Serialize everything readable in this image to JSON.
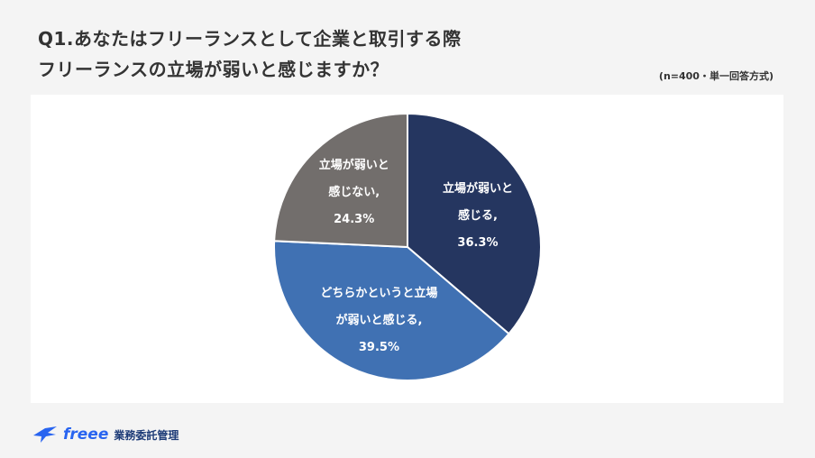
{
  "title": {
    "line1": "Q1.あなたはフリーランスとして企業と取引する際",
    "line2": "フリーランスの立場が弱いと感じますか？"
  },
  "note": "(n=400・単一回答方式)",
  "footer": {
    "brand": "freee",
    "service": "業務委託管理"
  },
  "colors": {
    "background": "#f4f4f4",
    "panel": "#ffffff",
    "accent": "#2864f0"
  },
  "chart_data": {
    "type": "pie",
    "slices": [
      {
        "label_lines": [
          "立場が弱いと",
          "感じる,",
          "36.3%"
        ],
        "value": 36.3,
        "color": "#253660"
      },
      {
        "label_lines": [
          "どちらかというと立場",
          "が弱いと感じる,",
          "39.5%"
        ],
        "value": 39.5,
        "color": "#4071b3"
      },
      {
        "label_lines": [
          "立場が弱いと",
          "感じない,",
          "24.3%"
        ],
        "value": 24.3,
        "color": "#726e6c"
      }
    ]
  }
}
